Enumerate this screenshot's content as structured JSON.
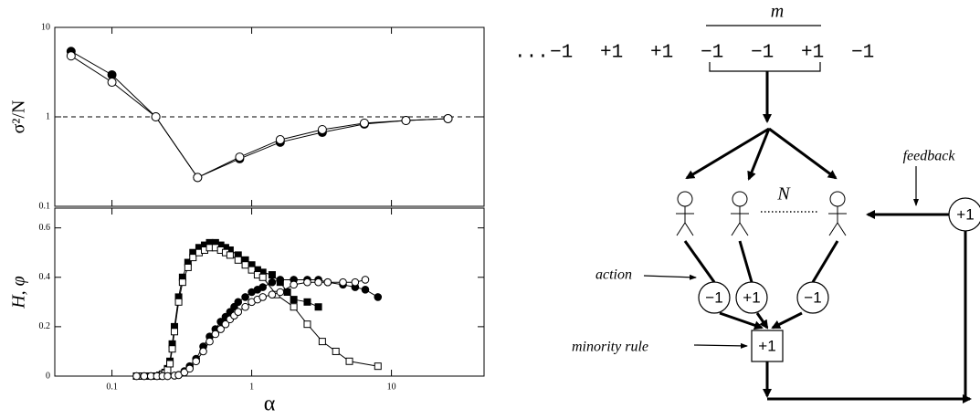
{
  "chart_data": [
    {
      "type": "line",
      "ylabel": "σ²/N",
      "xscale": "log",
      "yscale": "log",
      "xlim": [
        0.039,
        46
      ],
      "ylim": [
        0.1,
        10
      ],
      "yticks": [
        0.1,
        1,
        10
      ],
      "reference_line": 1,
      "series": [
        {
          "color": "#000000",
          "marker": "circle",
          "filled": true,
          "x": [
            0.051,
            0.1,
            0.206,
            0.41,
            0.82,
            1.6,
            3.2,
            6.4,
            12.7,
            25.4
          ],
          "values": [
            5.4,
            2.95,
            1.0,
            0.21,
            0.34,
            0.52,
            0.67,
            0.83,
            0.91,
            0.955
          ]
        },
        {
          "color": "#000000",
          "marker": "circle",
          "filled": false,
          "x": [
            0.051,
            0.1,
            0.206,
            0.41,
            0.82,
            1.6,
            3.2,
            6.4,
            12.7,
            25.4
          ],
          "values": [
            4.8,
            2.44,
            1.0,
            0.21,
            0.355,
            0.555,
            0.72,
            0.85,
            0.91,
            0.955
          ]
        }
      ]
    },
    {
      "type": "line",
      "xlabel": "α",
      "ylabel": "H, φ",
      "xscale": "log",
      "xlim": [
        0.039,
        46
      ],
      "ylim": [
        0,
        0.68
      ],
      "xticks": [
        0.1,
        1,
        10
      ],
      "yticks": [
        0,
        0.2,
        0.4,
        0.6
      ],
      "series": [
        {
          "color": "#000000",
          "marker": "square",
          "filled": true,
          "x": [
            0.15,
            0.16,
            0.17,
            0.18,
            0.19,
            0.2,
            0.21,
            0.22,
            0.23,
            0.24,
            0.25,
            0.26,
            0.27,
            0.28,
            0.3,
            0.32,
            0.35,
            0.38,
            0.42,
            0.46,
            0.5,
            0.55,
            0.6,
            0.65,
            0.7,
            0.8,
            0.9,
            1.0,
            1.1,
            1.2,
            1.4,
            1.6,
            1.8,
            2.0,
            2.5,
            3.0
          ],
          "values": [
            0,
            0,
            0,
            0,
            0,
            0,
            0,
            0.003,
            0.008,
            0.015,
            0.03,
            0.06,
            0.13,
            0.2,
            0.32,
            0.4,
            0.46,
            0.5,
            0.52,
            0.53,
            0.54,
            0.54,
            0.53,
            0.52,
            0.51,
            0.49,
            0.47,
            0.45,
            0.43,
            0.42,
            0.41,
            0.38,
            0.34,
            0.31,
            0.3,
            0.28
          ]
        },
        {
          "color": "#000000",
          "marker": "square",
          "filled": false,
          "x": [
            0.15,
            0.16,
            0.17,
            0.18,
            0.19,
            0.2,
            0.21,
            0.22,
            0.23,
            0.24,
            0.25,
            0.26,
            0.27,
            0.28,
            0.3,
            0.32,
            0.35,
            0.38,
            0.42,
            0.46,
            0.5,
            0.55,
            0.6,
            0.65,
            0.7,
            0.8,
            0.9,
            1.0,
            1.1,
            1.2,
            1.5,
            2.0,
            2.5,
            3.2,
            4.0,
            5.0,
            8.0
          ],
          "values": [
            0,
            0,
            0,
            0,
            0,
            0,
            0,
            0.002,
            0.006,
            0.012,
            0.025,
            0.05,
            0.11,
            0.18,
            0.3,
            0.38,
            0.44,
            0.48,
            0.5,
            0.51,
            0.52,
            0.52,
            0.51,
            0.5,
            0.49,
            0.47,
            0.45,
            0.43,
            0.41,
            0.4,
            0.33,
            0.28,
            0.21,
            0.14,
            0.1,
            0.06,
            0.04
          ]
        },
        {
          "color": "#000000",
          "marker": "circle",
          "filled": true,
          "x": [
            0.15,
            0.17,
            0.19,
            0.21,
            0.23,
            0.25,
            0.28,
            0.3,
            0.33,
            0.36,
            0.4,
            0.45,
            0.5,
            0.55,
            0.6,
            0.65,
            0.7,
            0.75,
            0.8,
            0.9,
            1.0,
            1.1,
            1.2,
            1.4,
            1.6,
            2.0,
            2.5,
            3.0,
            3.5,
            4.5,
            5.5,
            6.5,
            8.0
          ],
          "values": [
            0,
            0,
            0,
            0,
            0,
            0,
            0.002,
            0.005,
            0.02,
            0.04,
            0.07,
            0.12,
            0.16,
            0.19,
            0.22,
            0.24,
            0.26,
            0.28,
            0.3,
            0.32,
            0.34,
            0.35,
            0.36,
            0.38,
            0.39,
            0.39,
            0.39,
            0.39,
            0.38,
            0.37,
            0.36,
            0.35,
            0.32
          ]
        },
        {
          "color": "#000000",
          "marker": "circle",
          "filled": false,
          "x": [
            0.15,
            0.17,
            0.19,
            0.21,
            0.23,
            0.25,
            0.28,
            0.3,
            0.33,
            0.36,
            0.4,
            0.45,
            0.5,
            0.55,
            0.6,
            0.65,
            0.7,
            0.75,
            0.8,
            0.9,
            1.0,
            1.1,
            1.2,
            1.4,
            1.6,
            2.0,
            2.5,
            3.0,
            3.5,
            4.5,
            5.5,
            6.5
          ],
          "values": [
            0,
            0,
            0,
            0,
            0,
            0,
            0.002,
            0.004,
            0.015,
            0.03,
            0.06,
            0.1,
            0.14,
            0.17,
            0.19,
            0.21,
            0.23,
            0.245,
            0.26,
            0.28,
            0.3,
            0.31,
            0.32,
            0.33,
            0.34,
            0.37,
            0.38,
            0.38,
            0.38,
            0.38,
            0.38,
            0.39
          ]
        }
      ]
    }
  ],
  "diagram": {
    "memory_label": "m",
    "ellipsis": "...",
    "sequence": [
      "−1",
      "+1",
      "+1",
      "−1",
      "−1",
      "+1",
      "−1"
    ],
    "agents_label": "N",
    "actions": [
      "−1",
      "+1",
      "−1"
    ],
    "action_label": "action",
    "minority_label": "minority rule",
    "outcome": "+1",
    "feedback_label": "feedback",
    "feedback_value": "+1"
  }
}
